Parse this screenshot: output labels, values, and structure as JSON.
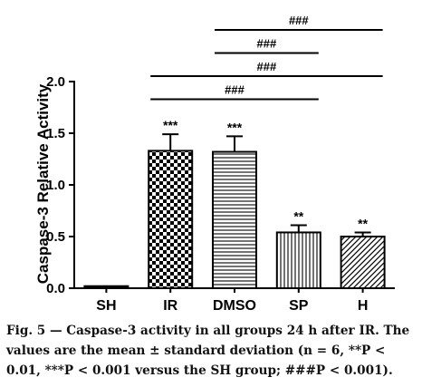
{
  "chart_data": {
    "type": "bar",
    "categories": [
      "SH",
      "IR",
      "DMSO",
      "SP",
      "H"
    ],
    "values": [
      0.02,
      1.33,
      1.32,
      0.54,
      0.5
    ],
    "errors": [
      0.01,
      0.16,
      0.15,
      0.07,
      0.04
    ],
    "significance": [
      "",
      "***",
      "***",
      "**",
      "**"
    ],
    "ylabel": "Caspase-3 Relative Activity",
    "ylim": [
      0,
      2.0
    ],
    "yticks": [
      0.0,
      0.5,
      1.0,
      1.5,
      2.0
    ],
    "ytick_labels": [
      "0.0",
      "0.5",
      "1.0",
      "1.5",
      "2.0"
    ],
    "fill_patterns": [
      "solid-black",
      "checkerboard",
      "horizontal-lines",
      "vertical-lines",
      "diagonal-lines"
    ],
    "comparisons": [
      {
        "from": "DMSO",
        "to": "H",
        "label": "###"
      },
      {
        "from": "DMSO",
        "to": "SP",
        "label": "###"
      },
      {
        "from": "IR",
        "to": "H",
        "label": "###"
      },
      {
        "from": "IR",
        "to": "SP",
        "label": "###"
      }
    ]
  },
  "caption": {
    "label": "Fig. 5",
    "text": " — Caspase-3 activity in all groups 24 h after IR. The values are the mean ± standard deviation (n = 6, **P < 0.01, ***P < 0.001 versus the SH group; ###P < 0.001)."
  }
}
